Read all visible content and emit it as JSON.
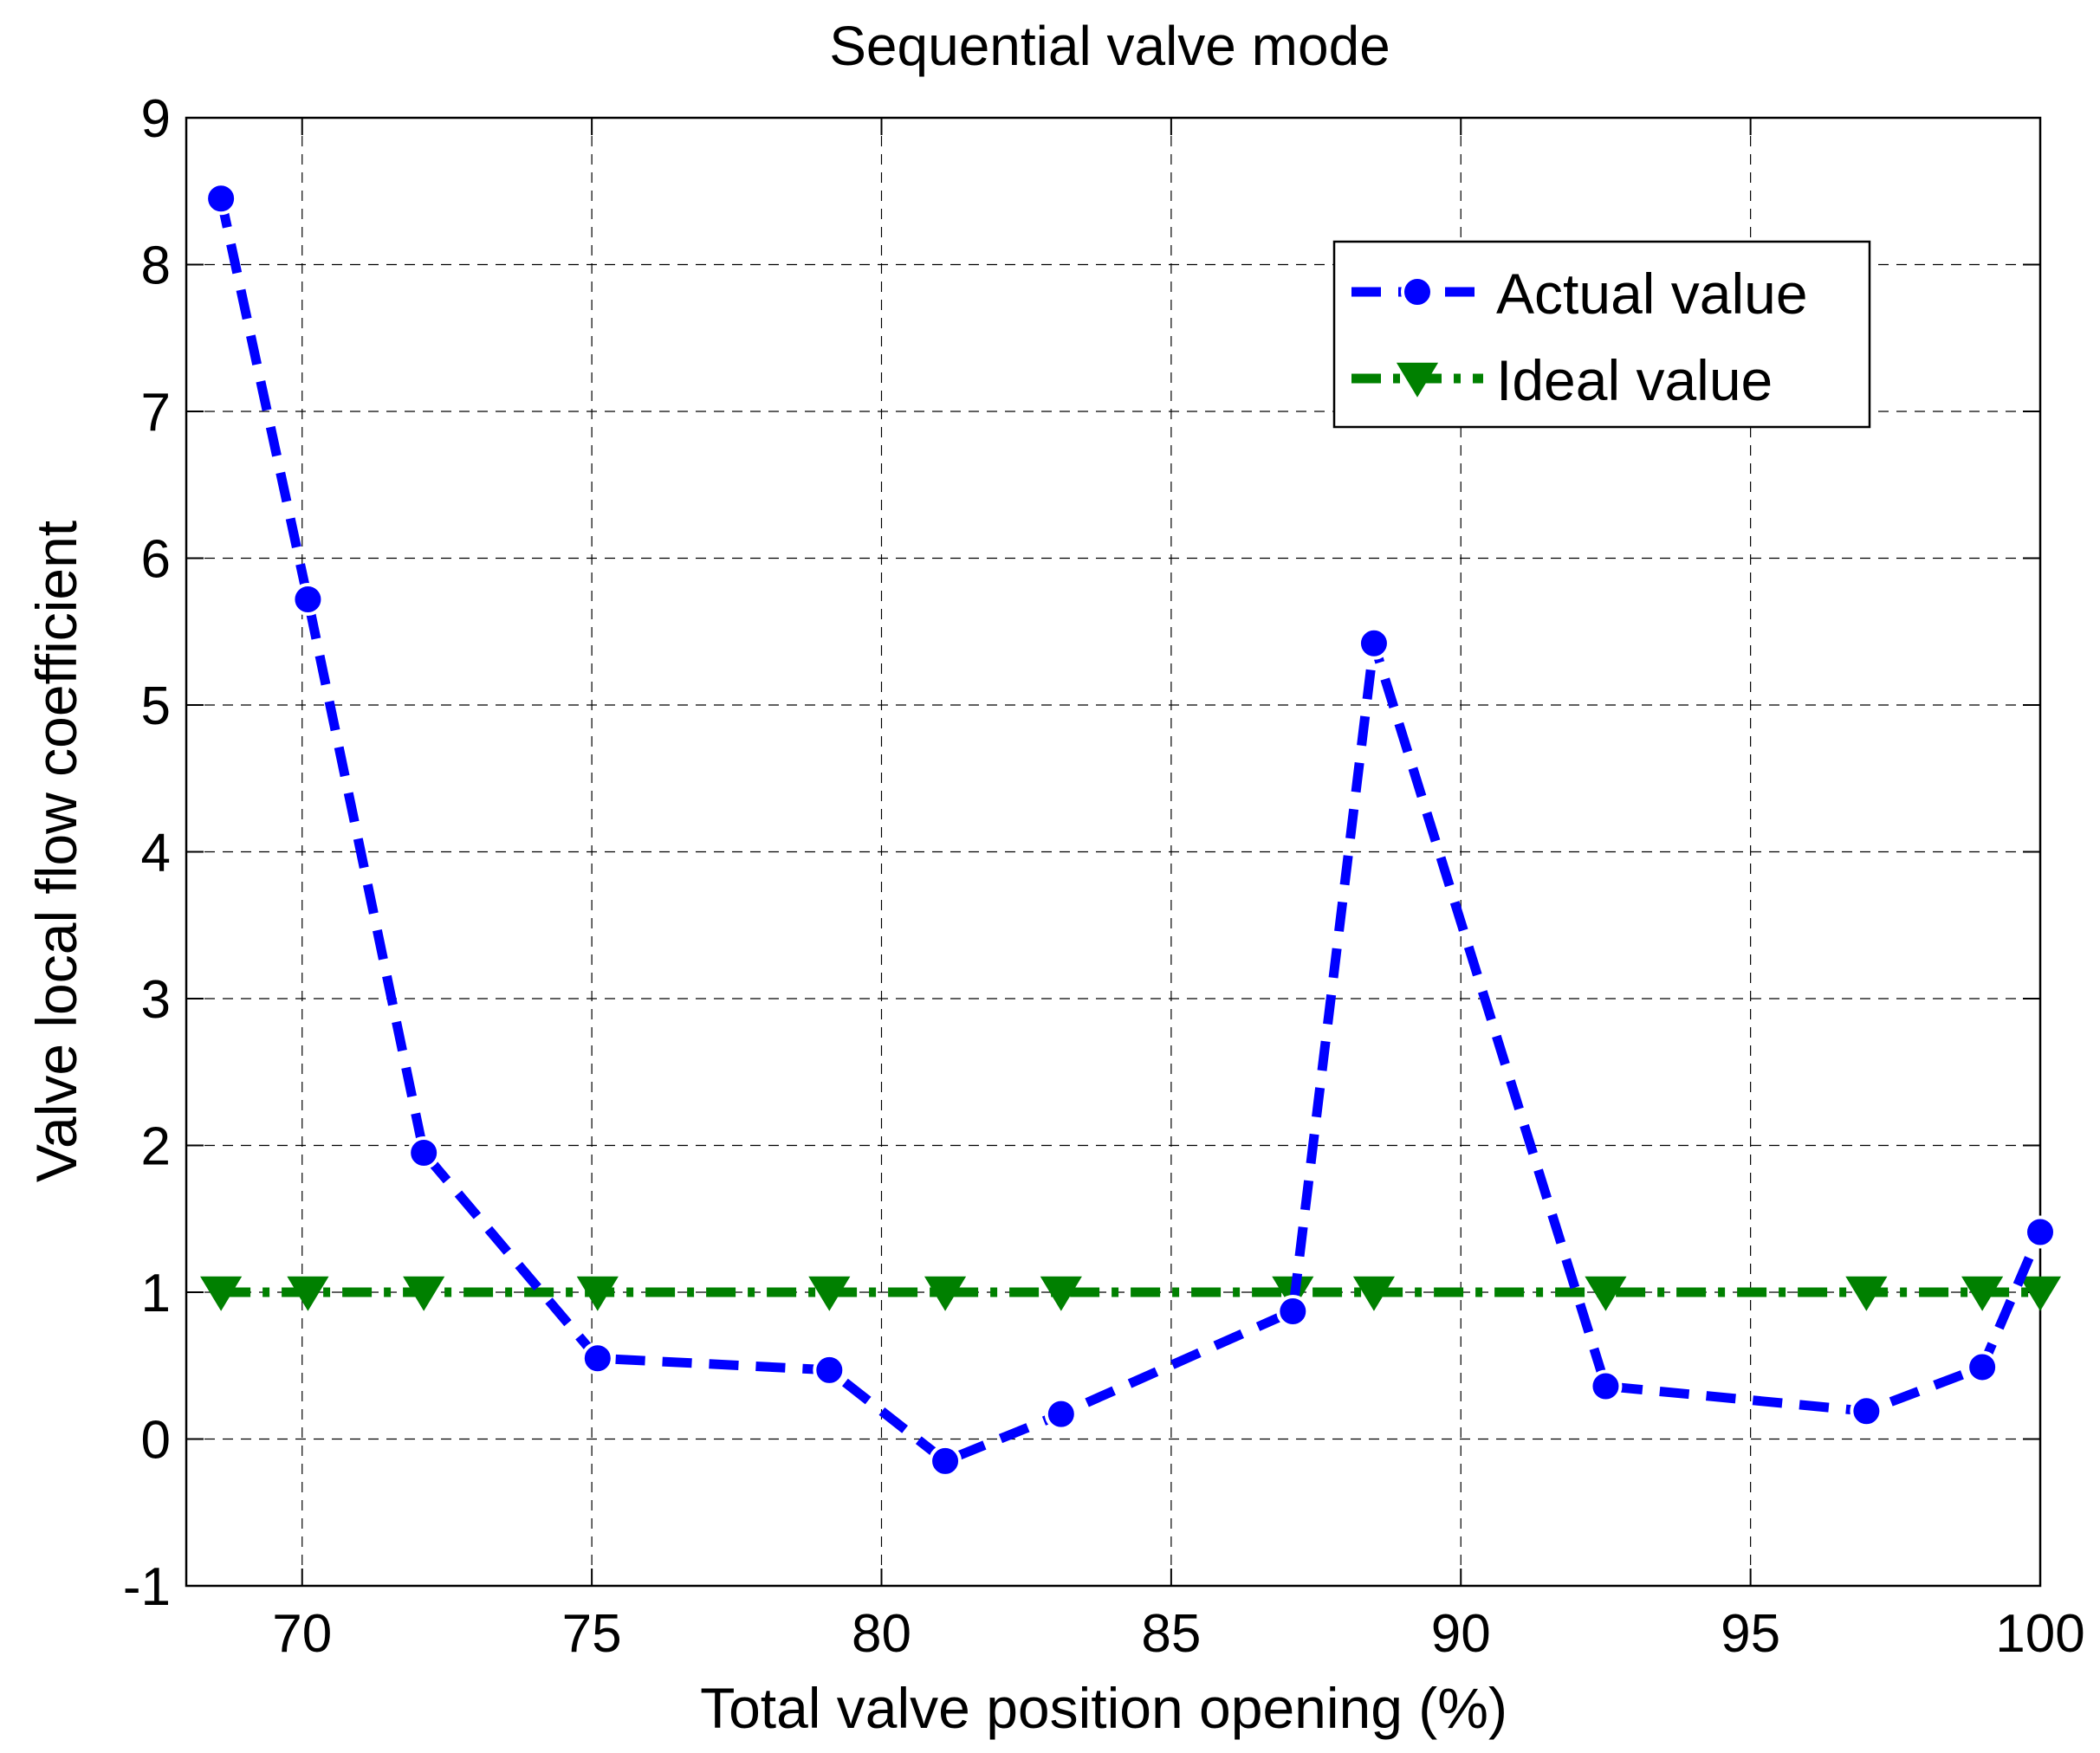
{
  "chart_data": {
    "type": "line",
    "title": "Sequential valve mode",
    "xlabel": "Total valve position opening (%)",
    "ylabel": "Valve local flow coefficient",
    "xlim": [
      68,
      100
    ],
    "ylim": [
      -1,
      9
    ],
    "xticks": [
      70,
      75,
      80,
      85,
      90,
      95,
      100
    ],
    "yticks": [
      -1,
      0,
      1,
      2,
      3,
      4,
      5,
      6,
      7,
      8,
      9
    ],
    "grid": true,
    "legend_position": "top-right",
    "series": [
      {
        "name": "Actual value",
        "color": "#0000ff",
        "line_style": "dashed",
        "marker": "circle",
        "x": [
          68.6,
          70.1,
          72.1,
          75.1,
          79.1,
          81.1,
          83.1,
          87.1,
          88.5,
          92.5,
          97.0,
          99.0,
          100.0
        ],
        "y": [
          8.45,
          5.72,
          1.95,
          0.55,
          0.47,
          -0.15,
          0.17,
          0.87,
          5.42,
          0.36,
          0.19,
          0.49,
          1.41
        ]
      },
      {
        "name": "Ideal value",
        "color": "#008000",
        "line_style": "dash-dot",
        "marker": "triangle-down",
        "x": [
          68.6,
          70.1,
          72.1,
          75.1,
          79.1,
          81.1,
          83.1,
          87.1,
          88.5,
          92.5,
          97.0,
          99.0,
          100.0
        ],
        "y": [
          1,
          1,
          1,
          1,
          1,
          1,
          1,
          1,
          1,
          1,
          1,
          1,
          1
        ]
      }
    ]
  }
}
